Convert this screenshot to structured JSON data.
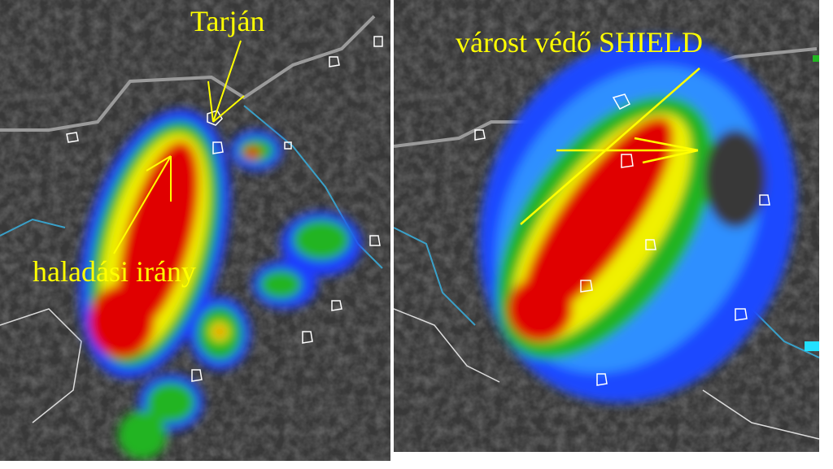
{
  "left_panel": {
    "label_town": "Tarján",
    "label_direction": "haladási irány"
  },
  "right_panel": {
    "label_shield": "várost védő SHIELD"
  },
  "colors": {
    "annotation": "#ffff00",
    "background": "#3a3a3a",
    "echo_blue": "#1e3cff",
    "echo_green": "#22b422",
    "echo_yellow": "#f0f000",
    "echo_red": "#e00000",
    "border_line": "#cccccc",
    "river": "#3aa0c8"
  },
  "icons": [
    "arrow-to-tarjan",
    "arrow-direction",
    "arrow-shield"
  ]
}
